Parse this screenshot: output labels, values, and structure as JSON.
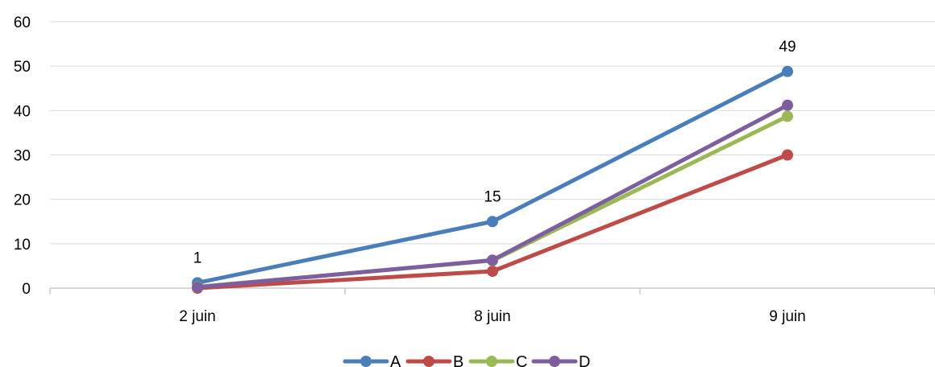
{
  "chart_data": {
    "type": "line",
    "title": "",
    "xlabel": "",
    "ylabel": "",
    "categories": [
      "2 juin",
      "8 juin",
      "9 juin"
    ],
    "ylim": [
      0,
      60
    ],
    "yticks": [
      "0",
      "10",
      "20",
      "30",
      "40",
      "50",
      "60"
    ],
    "grid": true,
    "legend_position": "bottom",
    "series": [
      {
        "name": "A",
        "color": "#4a7ebb",
        "values": [
          1.2,
          15,
          48.8
        ],
        "labels": [
          "1",
          "15",
          "49"
        ]
      },
      {
        "name": "B",
        "color": "#be4b48",
        "values": [
          0,
          3.8,
          30
        ],
        "labels": []
      },
      {
        "name": "C",
        "color": "#98b954",
        "values": [
          0.3,
          6.2,
          38.7
        ],
        "labels": []
      },
      {
        "name": "D",
        "color": "#7d5fa0",
        "values": [
          0.2,
          6.3,
          41.2
        ],
        "labels": []
      }
    ]
  }
}
